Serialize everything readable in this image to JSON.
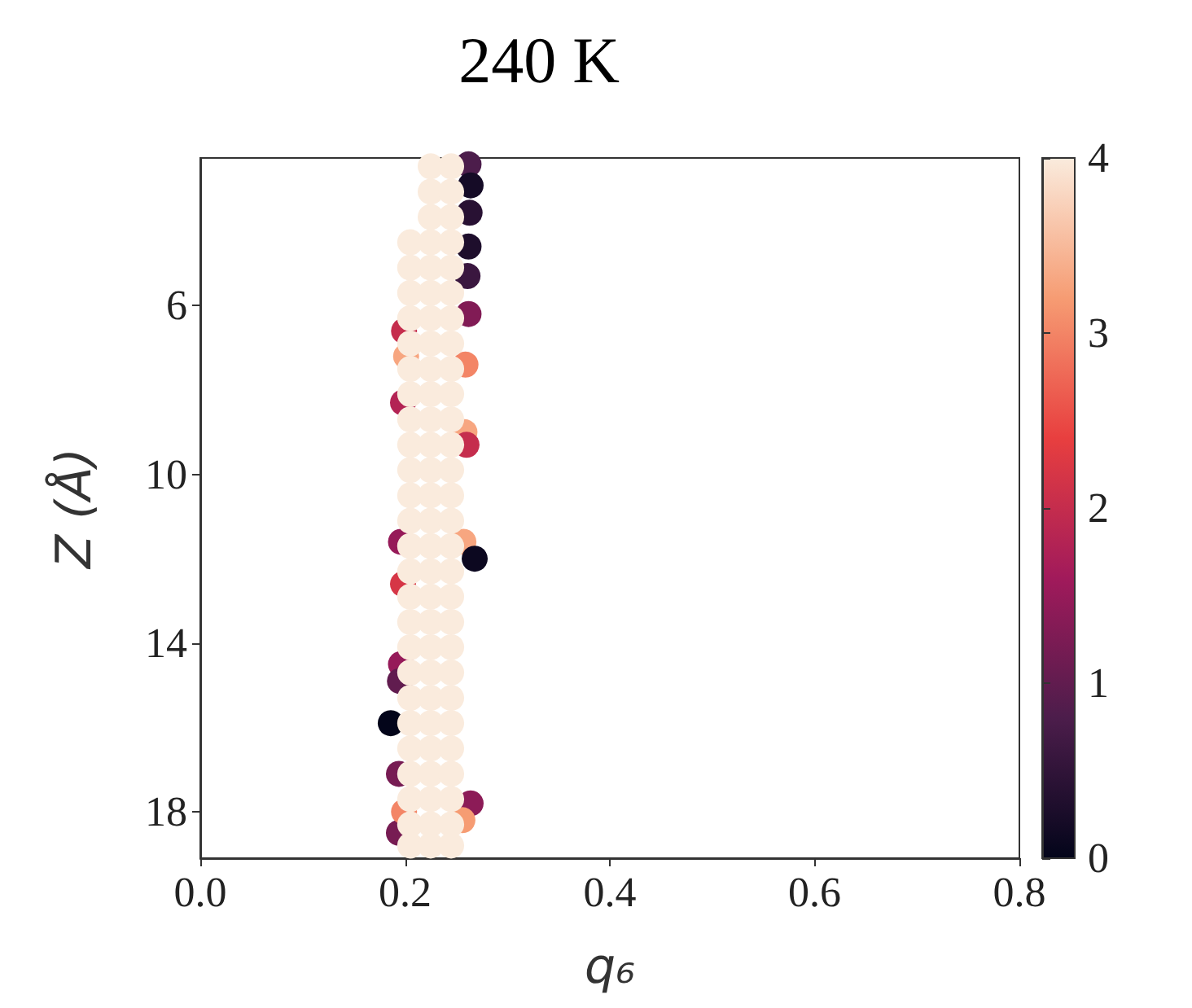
{
  "chart_data": {
    "type": "scatter",
    "title": "240 K",
    "xlabel": "q₆",
    "ylabel": "Z (Å)",
    "xlim": [
      0.0,
      0.8
    ],
    "xticks": [
      {
        "value": 0,
        "label": "0.0"
      },
      {
        "value": 0.2,
        "label": "0.2"
      },
      {
        "value": 0.4,
        "label": "0.4"
      },
      {
        "value": 0.6,
        "label": "0.6"
      },
      {
        "value": 0.8,
        "label": "0.8"
      }
    ],
    "ylim": [
      19.1,
      2.5
    ],
    "yticks": [
      6,
      10,
      14,
      18
    ],
    "clim": [
      0,
      4
    ],
    "cticks": [
      0,
      1,
      2,
      3,
      4
    ],
    "grid": false,
    "marker": "circle",
    "x": [
      0.262,
      0.264,
      0.263,
      0.262,
      0.261,
      0.199,
      0.201,
      0.198,
      0.262,
      0.259,
      0.258,
      0.26,
      0.196,
      0.198,
      0.257,
      0.268,
      0.186,
      0.196,
      0.195,
      0.194,
      0.194,
      0.199,
      0.264,
      0.256,
      0.225,
      0.245,
      0.225,
      0.245,
      0.225,
      0.245,
      0.205,
      0.225,
      0.245,
      0.205,
      0.225,
      0.245,
      0.205,
      0.225,
      0.245,
      0.205,
      0.225,
      0.245,
      0.205,
      0.225,
      0.245,
      0.205,
      0.225,
      0.245,
      0.205,
      0.225,
      0.245,
      0.205,
      0.225,
      0.245,
      0.205,
      0.225,
      0.245,
      0.205,
      0.225,
      0.245,
      0.205,
      0.225,
      0.245,
      0.205,
      0.225,
      0.245,
      0.205,
      0.225,
      0.245,
      0.205,
      0.225,
      0.245,
      0.205,
      0.225,
      0.245,
      0.205,
      0.225,
      0.245,
      0.205,
      0.225,
      0.245,
      0.205,
      0.225,
      0.245,
      0.205,
      0.225,
      0.245,
      0.205,
      0.225,
      0.245,
      0.205,
      0.225,
      0.245,
      0.205,
      0.225,
      0.245,
      0.205,
      0.225,
      0.245,
      0.205,
      0.225,
      0.245,
      0.205,
      0.225,
      0.245
    ],
    "values": [
      2.65,
      3.15,
      3.8,
      4.6,
      5.3,
      6.6,
      7.2,
      8.3,
      6.2,
      7.4,
      9.0,
      9.3,
      11.6,
      12.6,
      11.6,
      12.0,
      15.9,
      14.5,
      14.9,
      17.1,
      18.5,
      18.0,
      17.8,
      18.2,
      2.7,
      2.7,
      3.3,
      3.3,
      3.9,
      3.9,
      4.5,
      4.5,
      4.5,
      5.1,
      5.1,
      5.1,
      5.7,
      5.7,
      5.7,
      6.3,
      6.3,
      6.3,
      6.9,
      6.9,
      6.9,
      7.5,
      7.5,
      7.5,
      8.1,
      8.1,
      8.1,
      8.7,
      8.7,
      8.7,
      9.3,
      9.3,
      9.3,
      9.9,
      9.9,
      9.9,
      10.5,
      10.5,
      10.5,
      11.1,
      11.1,
      11.1,
      11.7,
      11.7,
      11.7,
      12.3,
      12.3,
      12.3,
      12.9,
      12.9,
      12.9,
      13.5,
      13.5,
      13.5,
      14.1,
      14.1,
      14.1,
      14.7,
      14.7,
      14.7,
      15.3,
      15.3,
      15.3,
      15.9,
      15.9,
      15.9,
      16.5,
      16.5,
      16.5,
      17.1,
      17.1,
      17.1,
      17.7,
      17.7,
      17.7,
      18.3,
      18.3,
      18.3,
      18.8,
      18.8,
      18.8
    ],
    "cvalues": [
      0.8,
      0.2,
      0.4,
      0.3,
      0.6,
      2.0,
      3.3,
      1.8,
      1.3,
      3.0,
      3.3,
      2.0,
      1.5,
      2.2,
      3.3,
      0.1,
      0.0,
      1.5,
      1.0,
      1.2,
      1.2,
      3.0,
      1.4,
      3.2,
      4,
      4,
      4,
      4,
      4,
      4,
      4,
      4,
      4,
      4,
      4,
      4,
      4,
      4,
      4,
      4,
      4,
      4,
      4,
      4,
      4,
      4,
      4,
      4,
      4,
      4,
      4,
      4,
      4,
      4,
      4,
      4,
      4,
      4,
      4,
      4,
      4,
      4,
      4,
      4,
      4,
      4,
      4,
      4,
      4,
      4,
      4,
      4,
      4,
      4,
      4,
      4,
      4,
      4,
      4,
      4,
      4,
      4,
      4,
      4,
      4,
      4,
      4,
      4,
      4,
      4,
      4,
      4,
      4,
      4,
      4,
      4,
      4,
      4,
      4,
      4,
      4,
      4,
      4,
      4,
      4
    ]
  }
}
